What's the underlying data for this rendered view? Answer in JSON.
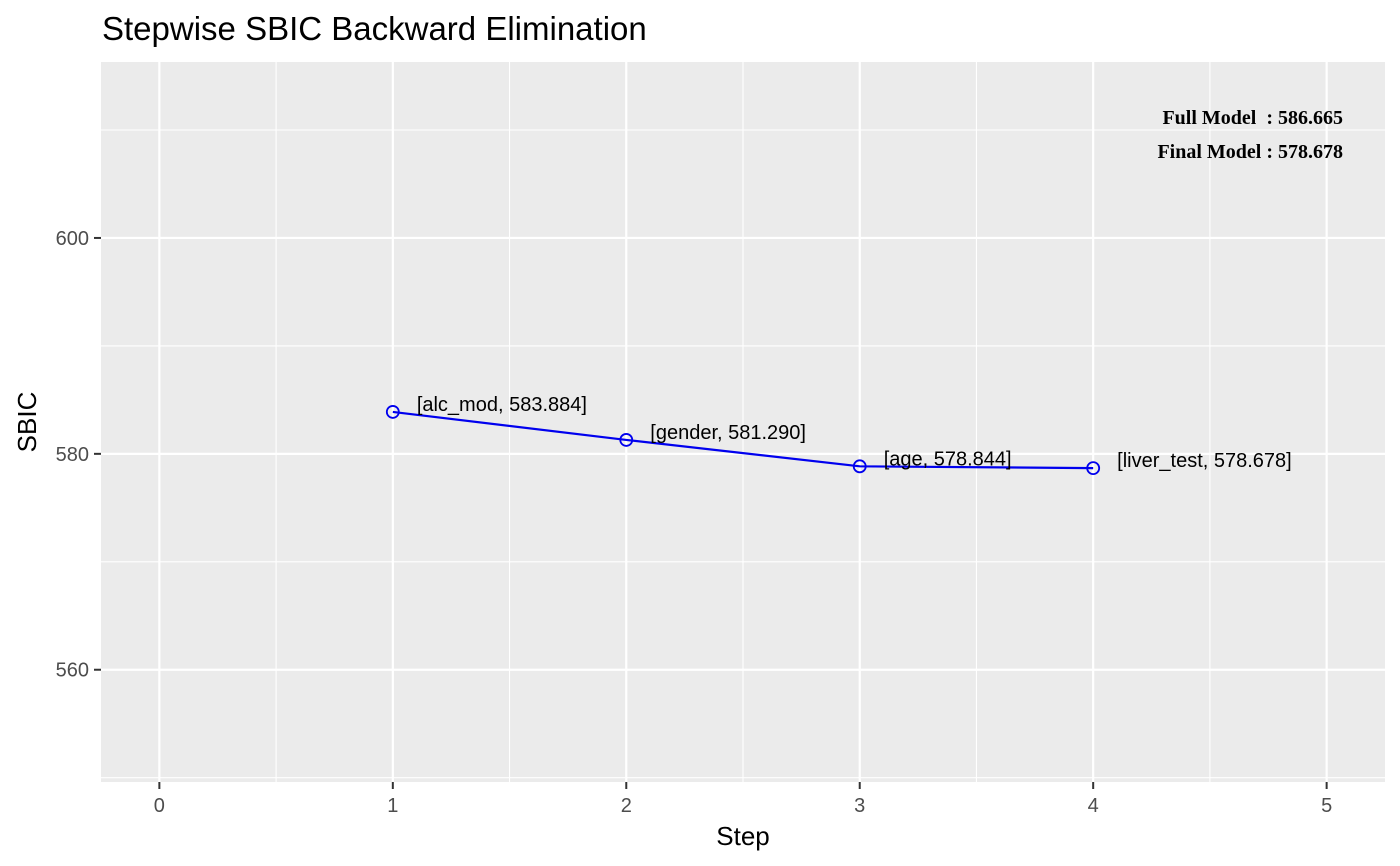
{
  "chart_data": {
    "type": "line",
    "title": "Stepwise SBIC Backward Elimination",
    "xlabel": "Step",
    "ylabel": "SBIC",
    "xlim": [
      -0.25,
      5.25
    ],
    "ylim": [
      549.6,
      616.3
    ],
    "x_ticks": [
      0,
      1,
      2,
      3,
      4,
      5
    ],
    "x_tick_labels": [
      "0",
      "1",
      "2",
      "3",
      "4",
      "5"
    ],
    "y_ticks": [
      560,
      580,
      600
    ],
    "y_tick_labels": [
      "560",
      "580",
      "600"
    ],
    "grid": true,
    "series": [
      {
        "color": "#0000ee",
        "x": [
          1,
          2,
          3,
          4
        ],
        "y": [
          583.884,
          581.29,
          578.844,
          578.678
        ],
        "labels": [
          "[alc_mod, 583.884]",
          "[gender, 581.290]",
          "[age, 578.844]",
          "[liver_test, 578.678]"
        ]
      }
    ],
    "annotations": [
      "Full Model  : 586.665",
      "Final Model : 578.678"
    ],
    "annotation_position": "top-right",
    "panel_color": "#ebebeb"
  }
}
